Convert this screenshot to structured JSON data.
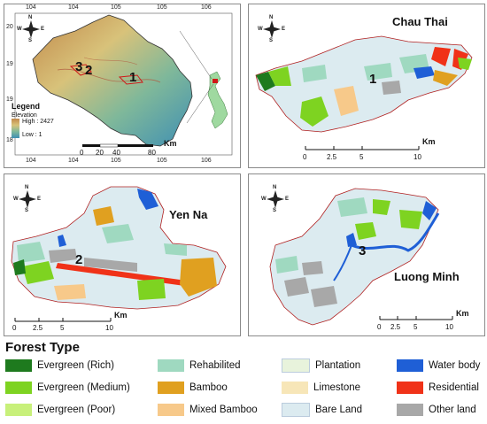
{
  "overview": {
    "top_ticks": [
      "104",
      "104",
      "105",
      "105",
      "106"
    ],
    "bottom_ticks": [
      "104",
      "104",
      "105",
      "105",
      "106"
    ],
    "left_ticks": [
      "20",
      "19",
      "19",
      "18"
    ],
    "legend_title": "Legend",
    "legend_subtitle": "Elevation",
    "legend_high": "High : 2427",
    "legend_low": "Low : 1",
    "scale_labels": [
      "0",
      "20",
      "40",
      "80"
    ],
    "scale_unit": "Km",
    "markers": [
      "3",
      "2",
      "1"
    ],
    "elevation_colors": [
      "#c1884a",
      "#d8c27a",
      "#7fb89a",
      "#3f8fb3"
    ]
  },
  "chau_thai": {
    "title": "Chau Thai",
    "marker": "1",
    "scale_labels": [
      "0",
      "2.5",
      "5",
      "10"
    ],
    "scale_unit": "Km"
  },
  "yen_na": {
    "title": "Yen Na",
    "marker": "2",
    "scale_labels": [
      "0",
      "2.5",
      "5",
      "10"
    ],
    "scale_unit": "Km"
  },
  "luong_minh": {
    "title": "Luong Minh",
    "marker": "3",
    "scale_labels": [
      "0",
      "2.5",
      "5",
      "10"
    ],
    "scale_unit": "Km"
  },
  "north_arrow": {
    "n": "N",
    "s": "S",
    "e": "E",
    "w": "W"
  },
  "legend": {
    "title": "Forest Type",
    "items": [
      {
        "label": "Evergreen (Rich)",
        "color": "#1e7a1e"
      },
      {
        "label": "Evergreen (Medium)",
        "color": "#7ed321"
      },
      {
        "label": "Evergreen (Poor)",
        "color": "#c8f07a"
      },
      {
        "label": "Rehabilited",
        "color": "#9fd9c0"
      },
      {
        "label": "Bamboo",
        "color": "#e0a020"
      },
      {
        "label": "Mixed Bamboo",
        "color": "#f7c98a"
      },
      {
        "label": "Plantation",
        "color": "#e8f3dc"
      },
      {
        "label": "Limestone",
        "color": "#f7e6b8"
      },
      {
        "label": "Bare Land",
        "color": "#dcebf0"
      },
      {
        "label": "Water body",
        "color": "#1f5fd6"
      },
      {
        "label": "Residential",
        "color": "#f03218"
      },
      {
        "label": "Other land",
        "color": "#a8a8a8"
      }
    ]
  }
}
